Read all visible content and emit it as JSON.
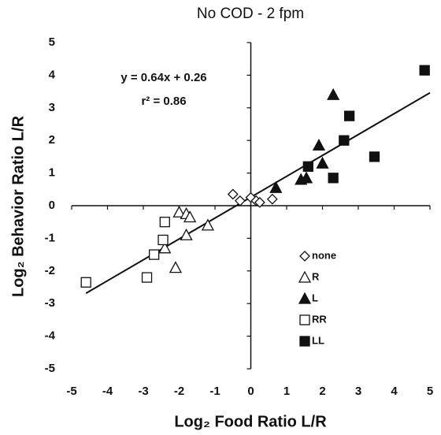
{
  "chart_data": {
    "type": "scatter",
    "title": "No COD - 2 fpm",
    "x_label": "Log₂ Food Ratio L/R",
    "y_label": "Log₂ Behavior Ratio L/R",
    "annotations": [
      "y = 0.64x + 0.26",
      "r² = 0.86"
    ],
    "trendline": {
      "slope": 0.64,
      "intercept": 0.26,
      "x": [
        -4.6,
        5
      ]
    },
    "xlim": [
      -5,
      5
    ],
    "ylim": [
      -5,
      5
    ],
    "xticks": [
      -5,
      -4,
      -3,
      -2,
      -1,
      0,
      1,
      2,
      3,
      4,
      5
    ],
    "yticks": [
      -5,
      -4,
      -3,
      -2,
      -1,
      0,
      1,
      2,
      3,
      4,
      5
    ],
    "grid": false,
    "series": [
      {
        "name": "none",
        "color": "#111111",
        "marker": "diamond",
        "filled": false,
        "x": [
          -0.5,
          -0.3,
          0.0,
          0.15,
          0.25,
          0.6
        ],
        "y": [
          0.35,
          0.15,
          0.25,
          0.15,
          0.1,
          0.2
        ]
      },
      {
        "name": "R",
        "color": "#111111",
        "marker": "triangle",
        "filled": false,
        "x": [
          -2.0,
          -1.8,
          -1.7,
          -1.8,
          -1.2,
          -2.4,
          -2.1
        ],
        "y": [
          -0.2,
          -0.25,
          -0.35,
          -0.9,
          -0.6,
          -1.3,
          -1.9
        ]
      },
      {
        "name": "L",
        "color": "#111111",
        "marker": "triangle",
        "filled": true,
        "x": [
          0.7,
          1.4,
          1.55,
          1.9,
          2.0,
          2.3
        ],
        "y": [
          0.55,
          0.8,
          0.85,
          1.85,
          1.3,
          3.4
        ]
      },
      {
        "name": "RR",
        "color": "#111111",
        "marker": "square",
        "filled": false,
        "x": [
          -4.6,
          -2.9,
          -2.7,
          -2.45,
          -2.4
        ],
        "y": [
          -2.35,
          -2.2,
          -1.5,
          -1.05,
          -0.5
        ]
      },
      {
        "name": "LL",
        "color": "#111111",
        "marker": "square",
        "filled": true,
        "x": [
          1.6,
          2.3,
          2.6,
          2.75,
          3.45,
          4.85
        ],
        "y": [
          1.2,
          0.85,
          2.0,
          2.75,
          1.5,
          4.15
        ]
      }
    ]
  }
}
